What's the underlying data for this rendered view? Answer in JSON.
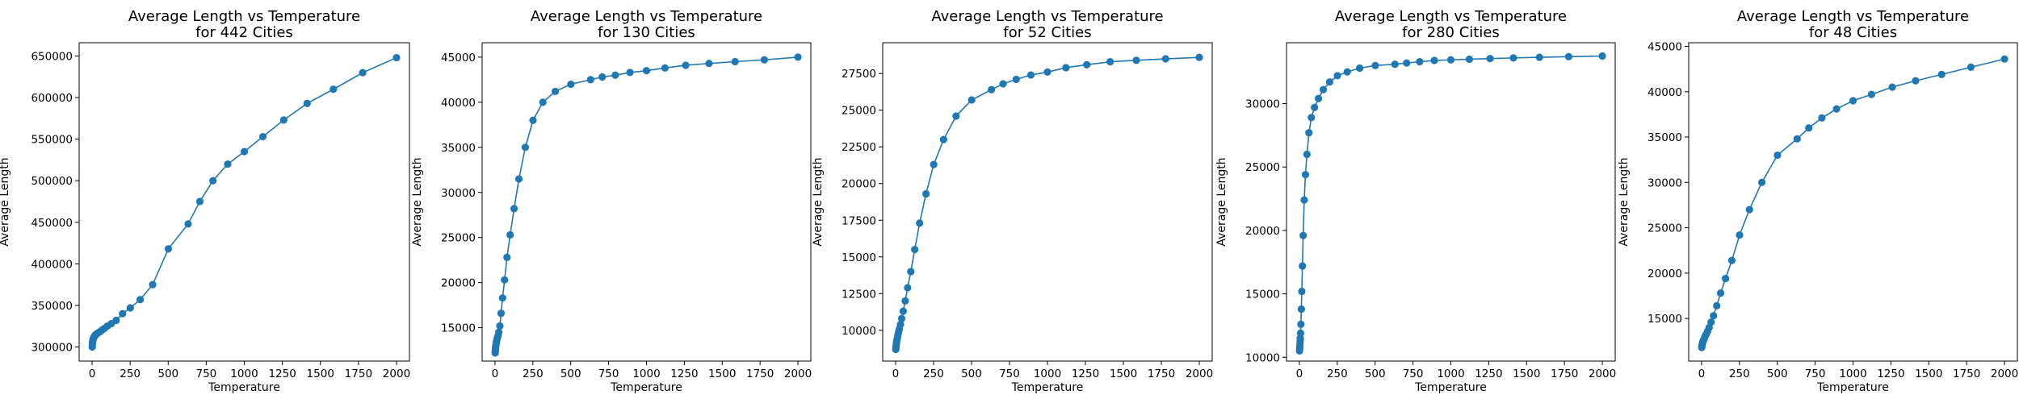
{
  "chart_data": [
    {
      "type": "line",
      "title": [
        "Average Length vs Temperature",
        "for 442 Cities"
      ],
      "xlabel": "Temperature",
      "ylabel": "Average Length",
      "xlim": [
        -85,
        2085
      ],
      "ylim": [
        283000,
        666000
      ],
      "xticks": [
        0,
        250,
        500,
        750,
        1000,
        1250,
        1500,
        1750,
        2000
      ],
      "yticks": [
        300000,
        350000,
        400000,
        450000,
        500000,
        550000,
        600000,
        650000
      ],
      "marker_color": "#1f77b4",
      "series": [
        {
          "x": [
            1,
            2,
            3,
            4,
            5,
            6,
            8,
            10,
            13,
            16,
            20,
            25,
            32,
            40,
            50,
            63,
            79,
            100,
            126,
            158,
            200,
            251,
            316,
            398,
            501,
            631,
            708,
            794,
            891,
            1000,
            1122,
            1259,
            1413,
            1585,
            1778,
            2000
          ],
          "y": [
            300000,
            303000,
            305000,
            307000,
            308000,
            309000,
            310000,
            311000,
            312000,
            313000,
            314000,
            315000,
            316000,
            317000,
            318000,
            320000,
            322000,
            325000,
            328000,
            332000,
            340000,
            347000,
            357000,
            375000,
            418000,
            448000,
            475000,
            500000,
            520000,
            535000,
            553000,
            573000,
            593000,
            610000,
            630000,
            648000
          ]
        }
      ]
    },
    {
      "type": "line",
      "title": [
        "Average Length vs Temperature",
        "for 130 Cities"
      ],
      "xlabel": "Temperature",
      "ylabel": "Average Length",
      "xlim": [
        -85,
        2085
      ],
      "ylim": [
        11300,
        46600
      ],
      "xticks": [
        0,
        250,
        500,
        750,
        1000,
        1250,
        1500,
        1750,
        2000
      ],
      "yticks": [
        15000,
        20000,
        25000,
        30000,
        35000,
        40000,
        45000
      ],
      "marker_color": "#1f77b4",
      "series": [
        {
          "x": [
            1,
            2,
            3,
            4,
            5,
            6,
            8,
            10,
            13,
            16,
            20,
            25,
            32,
            40,
            50,
            63,
            79,
            100,
            126,
            158,
            200,
            251,
            316,
            398,
            501,
            631,
            708,
            794,
            891,
            1000,
            1122,
            1259,
            1413,
            1585,
            1778,
            2000
          ],
          "y": [
            12200,
            12400,
            12600,
            12800,
            13000,
            13100,
            13300,
            13500,
            13700,
            13900,
            14100,
            14500,
            15200,
            16600,
            18300,
            20300,
            22800,
            25300,
            28200,
            31500,
            35000,
            38000,
            40000,
            41200,
            42000,
            42500,
            42800,
            43000,
            43300,
            43500,
            43800,
            44100,
            44300,
            44500,
            44700,
            45000
          ]
        }
      ]
    },
    {
      "type": "line",
      "title": [
        "Average Length vs Temperature",
        "for 52 Cities"
      ],
      "xlabel": "Temperature",
      "ylabel": "Average Length",
      "xlim": [
        -85,
        2085
      ],
      "ylim": [
        7900,
        29600
      ],
      "xticks": [
        0,
        250,
        500,
        750,
        1000,
        1250,
        1500,
        1750,
        2000
      ],
      "yticks": [
        10000,
        12500,
        15000,
        17500,
        20000,
        22500,
        25000,
        27500
      ],
      "marker_color": "#1f77b4",
      "series": [
        {
          "x": [
            1,
            2,
            3,
            4,
            5,
            6,
            8,
            10,
            13,
            16,
            20,
            25,
            32,
            40,
            50,
            63,
            79,
            100,
            126,
            158,
            200,
            251,
            316,
            398,
            501,
            631,
            708,
            794,
            891,
            1000,
            1122,
            1259,
            1413,
            1585,
            1778,
            2000
          ],
          "y": [
            8700,
            8800,
            8900,
            9000,
            9100,
            9200,
            9300,
            9400,
            9550,
            9700,
            9900,
            10100,
            10400,
            10800,
            11300,
            12000,
            12900,
            14000,
            15500,
            17300,
            19300,
            21300,
            23000,
            24600,
            25700,
            26400,
            26800,
            27100,
            27400,
            27600,
            27900,
            28100,
            28300,
            28400,
            28500,
            28600
          ]
        }
      ]
    },
    {
      "type": "line",
      "title": [
        "Average Length vs Temperature",
        "for 280 Cities"
      ],
      "xlabel": "Temperature",
      "ylabel": "Average Length",
      "xlim": [
        -85,
        2085
      ],
      "ylim": [
        9700,
        34800
      ],
      "xticks": [
        0,
        250,
        500,
        750,
        1000,
        1250,
        1500,
        1750,
        2000
      ],
      "yticks": [
        10000,
        15000,
        20000,
        25000,
        30000
      ],
      "marker_color": "#1f77b4",
      "series": [
        {
          "x": [
            1,
            2,
            3,
            4,
            5,
            6,
            8,
            10,
            13,
            16,
            20,
            25,
            32,
            40,
            50,
            63,
            79,
            100,
            126,
            158,
            200,
            251,
            316,
            398,
            501,
            631,
            708,
            794,
            891,
            1000,
            1122,
            1259,
            1413,
            1585,
            1778,
            2000
          ],
          "y": [
            10500,
            10700,
            10900,
            11100,
            11300,
            11500,
            11900,
            12600,
            13800,
            15200,
            17200,
            19600,
            22400,
            24400,
            26000,
            27700,
            28900,
            29700,
            30400,
            31100,
            31700,
            32200,
            32500,
            32800,
            33000,
            33100,
            33200,
            33300,
            33400,
            33450,
            33500,
            33550,
            33600,
            33650,
            33700,
            33750
          ]
        }
      ]
    },
    {
      "type": "line",
      "title": [
        "Average Length vs Temperature",
        "for 48 Cities"
      ],
      "xlabel": "Temperature",
      "ylabel": "Average Length",
      "xlim": [
        -85,
        2085
      ],
      "ylim": [
        10300,
        45400
      ],
      "xticks": [
        0,
        250,
        500,
        750,
        1000,
        1250,
        1500,
        1750,
        2000
      ],
      "yticks": [
        15000,
        20000,
        25000,
        30000,
        35000,
        40000,
        45000
      ],
      "marker_color": "#1f77b4",
      "series": [
        {
          "x": [
            1,
            2,
            3,
            4,
            5,
            6,
            8,
            10,
            13,
            16,
            20,
            25,
            32,
            40,
            50,
            63,
            79,
            100,
            126,
            158,
            200,
            251,
            316,
            398,
            501,
            631,
            708,
            794,
            891,
            1000,
            1122,
            1259,
            1413,
            1585,
            1778,
            2000
          ],
          "y": [
            11800,
            11900,
            12000,
            12100,
            12200,
            12300,
            12400,
            12500,
            12600,
            12700,
            12900,
            13100,
            13300,
            13600,
            14000,
            14600,
            15300,
            16400,
            17800,
            19400,
            21400,
            24200,
            27000,
            30000,
            33000,
            34800,
            36000,
            37100,
            38100,
            39000,
            39700,
            40500,
            41200,
            41900,
            42700,
            43600
          ]
        }
      ]
    }
  ]
}
